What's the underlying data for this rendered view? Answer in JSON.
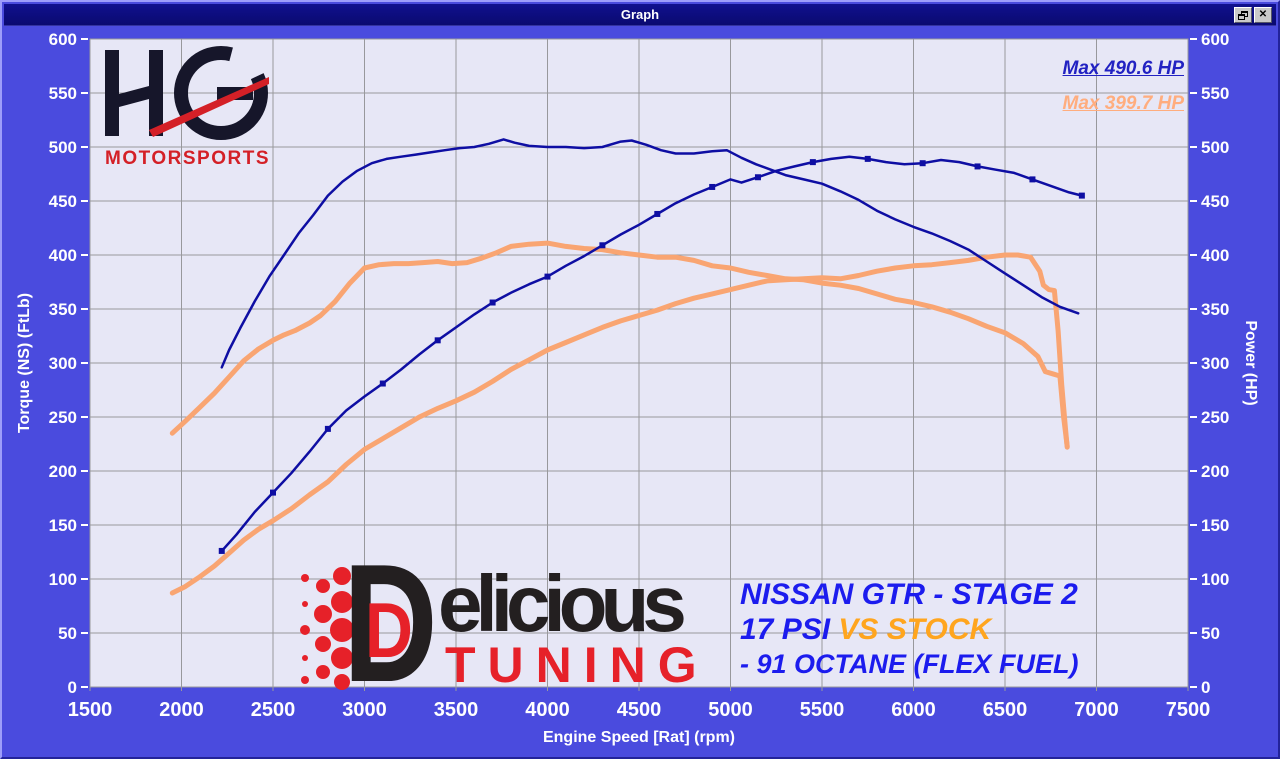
{
  "window": {
    "title": "Graph",
    "buttons": {
      "restore": "restore-icon",
      "close": "✕"
    }
  },
  "colors": {
    "body_bg": "#4a4bde",
    "plot_bg": "#e7e7f6",
    "grid": "#98989c",
    "tuned_line": "#0e0ea3",
    "stock_line": "#f9a572",
    "tick_text": "#ffffff"
  },
  "legend": {
    "tuned": "Max 490.6 HP",
    "stock": "Max 399.7 HP"
  },
  "annotations": {
    "line1": "NISSAN GTR - STAGE 2",
    "line2_blue": "17 PSI ",
    "line2_orange": "VS STOCK",
    "line3": "- 91 OCTANE (FLEX FUEL)"
  },
  "logos": {
    "hg": {
      "letters": "HG",
      "sub": "MOTORSPORTS"
    },
    "delicious": {
      "d": "D",
      "inner_d": "D",
      "rest": "elicious",
      "sub": "TUNING"
    }
  },
  "chart_data": {
    "type": "line",
    "xlabel": "Engine Speed [Rat] (rpm)",
    "ylabel_left": "Torque (NS) (FtLb)",
    "ylabel_right": "Power (HP)",
    "xlim": [
      1500,
      7500
    ],
    "ylim": [
      0,
      600
    ],
    "x_ticks": [
      1500,
      2000,
      2500,
      3000,
      3500,
      4000,
      4500,
      5000,
      5500,
      6000,
      6500,
      7000,
      7500
    ],
    "y_ticks": [
      0,
      50,
      100,
      150,
      200,
      250,
      300,
      350,
      400,
      450,
      500,
      550,
      600
    ],
    "grid": true,
    "legend_position": "top-right",
    "series": [
      {
        "name": "stock-power",
        "color": "#f9a572",
        "width": 5,
        "max_label": "Max 399.7 HP",
        "points": [
          [
            1950,
            87
          ],
          [
            2020,
            93
          ],
          [
            2100,
            102
          ],
          [
            2180,
            112
          ],
          [
            2260,
            124
          ],
          [
            2340,
            136
          ],
          [
            2420,
            146
          ],
          [
            2500,
            154
          ],
          [
            2600,
            165
          ],
          [
            2700,
            178
          ],
          [
            2800,
            190
          ],
          [
            2900,
            206
          ],
          [
            3000,
            220
          ],
          [
            3100,
            230
          ],
          [
            3200,
            240
          ],
          [
            3300,
            250
          ],
          [
            3400,
            258
          ],
          [
            3500,
            265
          ],
          [
            3600,
            273
          ],
          [
            3700,
            283
          ],
          [
            3800,
            294
          ],
          [
            3900,
            303
          ],
          [
            4000,
            312
          ],
          [
            4100,
            319
          ],
          [
            4200,
            326
          ],
          [
            4300,
            333
          ],
          [
            4400,
            339
          ],
          [
            4500,
            344
          ],
          [
            4600,
            349
          ],
          [
            4700,
            355
          ],
          [
            4800,
            360
          ],
          [
            4900,
            364
          ],
          [
            5000,
            368
          ],
          [
            5100,
            372
          ],
          [
            5200,
            376
          ],
          [
            5300,
            377
          ],
          [
            5400,
            378
          ],
          [
            5500,
            379
          ],
          [
            5600,
            378
          ],
          [
            5700,
            381
          ],
          [
            5800,
            385
          ],
          [
            5900,
            388
          ],
          [
            6000,
            390
          ],
          [
            6100,
            391
          ],
          [
            6200,
            393
          ],
          [
            6300,
            395
          ],
          [
            6400,
            398
          ],
          [
            6500,
            400
          ],
          [
            6570,
            400
          ],
          [
            6640,
            398
          ],
          [
            6690,
            385
          ],
          [
            6710,
            372
          ],
          [
            6740,
            368
          ],
          [
            6770,
            367
          ],
          [
            6790,
            330
          ],
          [
            6810,
            280
          ],
          [
            6830,
            240
          ],
          [
            6840,
            222
          ]
        ]
      },
      {
        "name": "stock-torque",
        "color": "#f9a572",
        "width": 5,
        "points": [
          [
            1950,
            235
          ],
          [
            2020,
            246
          ],
          [
            2100,
            259
          ],
          [
            2180,
            272
          ],
          [
            2260,
            287
          ],
          [
            2340,
            302
          ],
          [
            2420,
            313
          ],
          [
            2500,
            321
          ],
          [
            2560,
            326
          ],
          [
            2620,
            330
          ],
          [
            2700,
            337
          ],
          [
            2760,
            344
          ],
          [
            2840,
            357
          ],
          [
            2920,
            374
          ],
          [
            3000,
            388
          ],
          [
            3080,
            391
          ],
          [
            3160,
            392
          ],
          [
            3240,
            392
          ],
          [
            3320,
            393
          ],
          [
            3400,
            394
          ],
          [
            3480,
            392
          ],
          [
            3560,
            393
          ],
          [
            3640,
            397
          ],
          [
            3720,
            402
          ],
          [
            3800,
            408
          ],
          [
            3900,
            410
          ],
          [
            4000,
            411
          ],
          [
            4100,
            408
          ],
          [
            4200,
            406
          ],
          [
            4300,
            405
          ],
          [
            4400,
            402
          ],
          [
            4500,
            400
          ],
          [
            4600,
            398
          ],
          [
            4700,
            398
          ],
          [
            4800,
            395
          ],
          [
            4900,
            390
          ],
          [
            5000,
            388
          ],
          [
            5100,
            384
          ],
          [
            5200,
            381
          ],
          [
            5300,
            378
          ],
          [
            5400,
            377
          ],
          [
            5500,
            374
          ],
          [
            5600,
            372
          ],
          [
            5700,
            369
          ],
          [
            5800,
            364
          ],
          [
            5900,
            359
          ],
          [
            6000,
            356
          ],
          [
            6100,
            352
          ],
          [
            6200,
            347
          ],
          [
            6300,
            341
          ],
          [
            6400,
            334
          ],
          [
            6500,
            328
          ],
          [
            6600,
            318
          ],
          [
            6680,
            306
          ],
          [
            6720,
            292
          ],
          [
            6760,
            290
          ],
          [
            6800,
            288
          ],
          [
            6820,
            250
          ],
          [
            6840,
            223
          ]
        ]
      },
      {
        "name": "stage2-torque",
        "color": "#0e0ea3",
        "width": 2.5,
        "points": [
          [
            2220,
            296
          ],
          [
            2260,
            312
          ],
          [
            2320,
            332
          ],
          [
            2400,
            357
          ],
          [
            2480,
            380
          ],
          [
            2560,
            400
          ],
          [
            2640,
            420
          ],
          [
            2720,
            437
          ],
          [
            2800,
            455
          ],
          [
            2880,
            468
          ],
          [
            2960,
            478
          ],
          [
            3040,
            485
          ],
          [
            3120,
            489
          ],
          [
            3200,
            491
          ],
          [
            3280,
            493
          ],
          [
            3360,
            495
          ],
          [
            3440,
            497
          ],
          [
            3520,
            499
          ],
          [
            3600,
            500
          ],
          [
            3680,
            503
          ],
          [
            3760,
            507
          ],
          [
            3820,
            504
          ],
          [
            3900,
            501
          ],
          [
            4000,
            500
          ],
          [
            4100,
            500
          ],
          [
            4200,
            499
          ],
          [
            4300,
            500
          ],
          [
            4400,
            505
          ],
          [
            4460,
            506
          ],
          [
            4540,
            502
          ],
          [
            4620,
            497
          ],
          [
            4700,
            494
          ],
          [
            4800,
            494
          ],
          [
            4900,
            496
          ],
          [
            4980,
            497
          ],
          [
            5060,
            490
          ],
          [
            5140,
            484
          ],
          [
            5220,
            479
          ],
          [
            5300,
            474
          ],
          [
            5400,
            470
          ],
          [
            5500,
            466
          ],
          [
            5600,
            459
          ],
          [
            5700,
            451
          ],
          [
            5800,
            441
          ],
          [
            5900,
            433
          ],
          [
            6000,
            426
          ],
          [
            6100,
            420
          ],
          [
            6200,
            413
          ],
          [
            6300,
            405
          ],
          [
            6400,
            394
          ],
          [
            6500,
            383
          ],
          [
            6600,
            372
          ],
          [
            6700,
            361
          ],
          [
            6800,
            352
          ],
          [
            6900,
            346
          ]
        ]
      },
      {
        "name": "stage2-power",
        "color": "#0e0ea3",
        "width": 2.5,
        "marker_every": 3,
        "max_label": "Max 490.6 HP",
        "points": [
          [
            2220,
            126
          ],
          [
            2300,
            141
          ],
          [
            2400,
            162
          ],
          [
            2500,
            180
          ],
          [
            2600,
            198
          ],
          [
            2700,
            218
          ],
          [
            2800,
            239
          ],
          [
            2900,
            256
          ],
          [
            3000,
            269
          ],
          [
            3100,
            281
          ],
          [
            3200,
            294
          ],
          [
            3300,
            308
          ],
          [
            3400,
            321
          ],
          [
            3500,
            333
          ],
          [
            3600,
            345
          ],
          [
            3700,
            356
          ],
          [
            3800,
            365
          ],
          [
            3900,
            373
          ],
          [
            4000,
            380
          ],
          [
            4100,
            390
          ],
          [
            4200,
            399
          ],
          [
            4300,
            409
          ],
          [
            4400,
            419
          ],
          [
            4500,
            428
          ],
          [
            4600,
            438
          ],
          [
            4700,
            448
          ],
          [
            4800,
            456
          ],
          [
            4900,
            463
          ],
          [
            5000,
            470
          ],
          [
            5060,
            467
          ],
          [
            5150,
            472
          ],
          [
            5250,
            478
          ],
          [
            5350,
            482
          ],
          [
            5450,
            486
          ],
          [
            5550,
            489
          ],
          [
            5650,
            491
          ],
          [
            5750,
            489
          ],
          [
            5850,
            486
          ],
          [
            5950,
            484
          ],
          [
            6050,
            485
          ],
          [
            6150,
            488
          ],
          [
            6250,
            486
          ],
          [
            6350,
            482
          ],
          [
            6450,
            479
          ],
          [
            6550,
            476
          ],
          [
            6650,
            470
          ],
          [
            6750,
            464
          ],
          [
            6850,
            458
          ],
          [
            6920,
            455
          ]
        ]
      }
    ]
  }
}
